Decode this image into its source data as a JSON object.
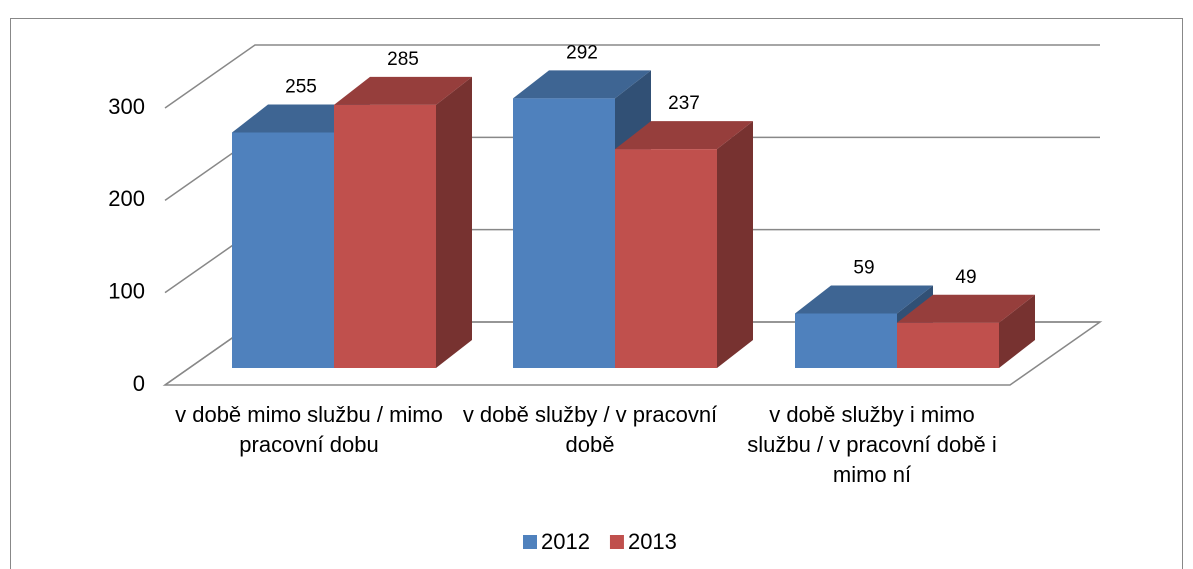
{
  "chart_data": {
    "type": "bar3d",
    "categories": [
      "v době mimo službu / mimo pracovní dobu",
      "v době služby / v pracovní době",
      "v době služby i mimo službu / v pracovní době i mimo ní"
    ],
    "series": [
      {
        "name": "2012",
        "color": "#4f81bd",
        "values": [
          255,
          292,
          59
        ]
      },
      {
        "name": "2013",
        "color": "#c0504d",
        "values": [
          285,
          237,
          49
        ]
      }
    ],
    "ylim": [
      0,
      300
    ],
    "yticks": [
      0,
      100,
      200,
      300
    ],
    "grid": true,
    "legend": "bottom",
    "data_labels": true
  }
}
